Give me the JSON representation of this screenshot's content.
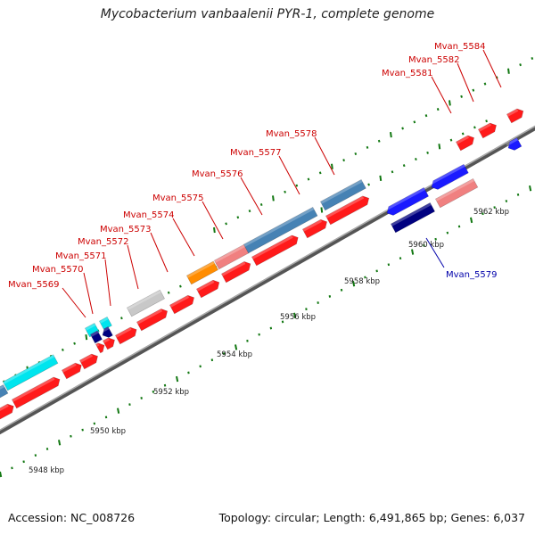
{
  "title": "Mycobacterium vanbaalenii PYR-1, complete genome",
  "footer": {
    "accession": "Accession: NC_008726",
    "summary": "Topology: circular; Length: 6,491,865 bp; Genes: 6,037"
  },
  "colors": {
    "forward_gene": "#ff1a1a",
    "reverse_gene": "#1a1aff",
    "backbone": "#777777",
    "ticks": "#117711",
    "label_forward": "#cc0000",
    "label_reverse": "#0000aa"
  },
  "scale_ticks": [
    {
      "kbp": 5948,
      "label": "5948 kbp"
    },
    {
      "kbp": 5950,
      "label": "5950 kbp"
    },
    {
      "kbp": 5952,
      "label": "5952 kbp"
    },
    {
      "kbp": 5954,
      "label": "5954 kbp"
    },
    {
      "kbp": 5956,
      "label": "5956 kbp"
    },
    {
      "kbp": 5958,
      "label": "5958 kbp"
    },
    {
      "kbp": 5960,
      "label": "5960 kbp"
    },
    {
      "kbp": 5962,
      "label": "5962 kbp"
    }
  ],
  "gene_labels": [
    {
      "name": "Mvan_5569",
      "strand": "forward"
    },
    {
      "name": "Mvan_5570",
      "strand": "forward"
    },
    {
      "name": "Mvan_5571",
      "strand": "forward"
    },
    {
      "name": "Mvan_5572",
      "strand": "forward"
    },
    {
      "name": "Mvan_5573",
      "strand": "forward"
    },
    {
      "name": "Mvan_5574",
      "strand": "forward"
    },
    {
      "name": "Mvan_5575",
      "strand": "forward"
    },
    {
      "name": "Mvan_5576",
      "strand": "forward"
    },
    {
      "name": "Mvan_5577",
      "strand": "forward"
    },
    {
      "name": "Mvan_5578",
      "strand": "forward"
    },
    {
      "name": "Mvan_5579",
      "strand": "reverse"
    },
    {
      "name": "Mvan_5581",
      "strand": "forward"
    },
    {
      "name": "Mvan_5582",
      "strand": "forward"
    },
    {
      "name": "Mvan_5584",
      "strand": "forward"
    }
  ]
}
